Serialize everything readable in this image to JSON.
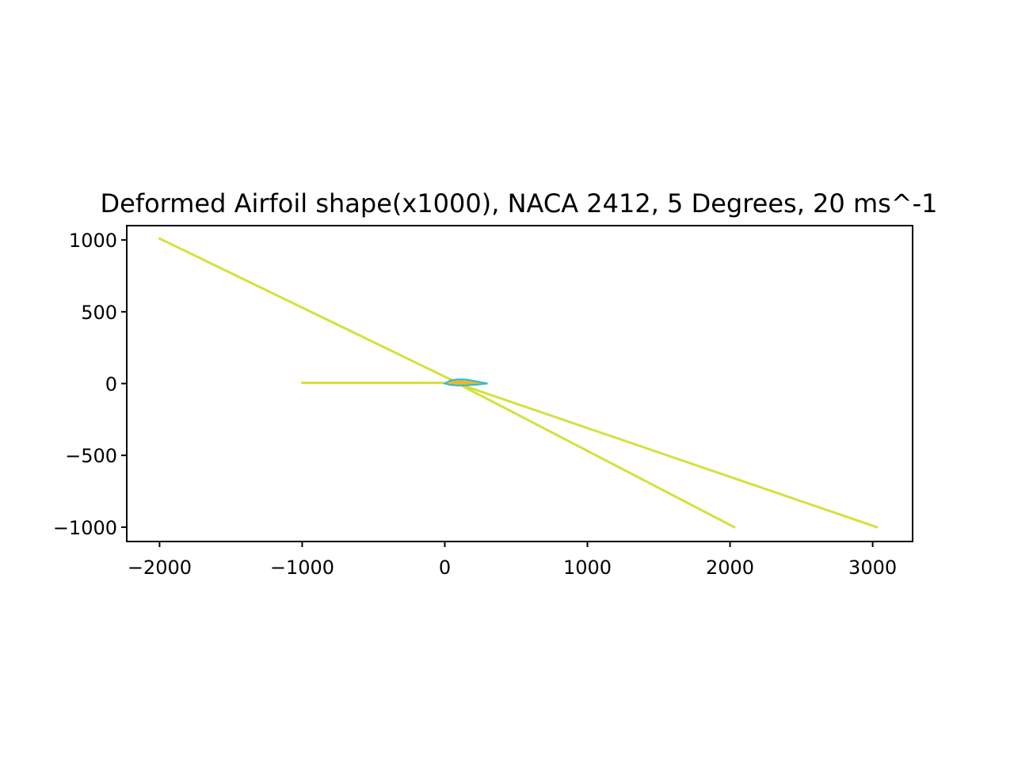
{
  "chart_data": {
    "type": "line",
    "title": "Deformed Airfoil shape(x1000), NACA 2412, 5 Degrees, 20 ms^-1",
    "xlabel": "",
    "ylabel": "",
    "xlim": [
      -2230,
      3280
    ],
    "ylim": [
      -1100,
      1100
    ],
    "xticks": [
      -2000,
      -1000,
      0,
      1000,
      2000,
      3000
    ],
    "xtick_labels": [
      "−2000",
      "−1000",
      "0",
      "1000",
      "2000",
      "3000"
    ],
    "yticks": [
      1000,
      500,
      0,
      -500,
      -1000
    ],
    "ytick_labels": [
      "1000",
      "500",
      "0",
      "−500",
      "−1000"
    ],
    "grid": false,
    "legend": "none",
    "colors": {
      "line": "#d4e13c",
      "airfoil_fill": "#e8b830",
      "airfoil_edge": "#2bbad8"
    },
    "series": [
      {
        "x": [
          -2000,
          100
        ],
        "y": [
          1010,
          0
        ]
      },
      {
        "x": [
          -1000,
          0
        ],
        "y": [
          5,
          5
        ]
      },
      {
        "x": [
          100,
          2030
        ],
        "y": [
          -5,
          -1000
        ]
      },
      {
        "x": [
          60,
          3030
        ],
        "y": [
          10,
          -1000
        ]
      },
      {
        "type": "airfoil",
        "x": [
          0,
          40,
          90,
          150,
          220,
          300,
          220,
          150,
          90,
          40,
          0
        ],
        "y": [
          0,
          22,
          30,
          28,
          16,
          0,
          -8,
          -12,
          -14,
          -10,
          0
        ]
      }
    ]
  }
}
